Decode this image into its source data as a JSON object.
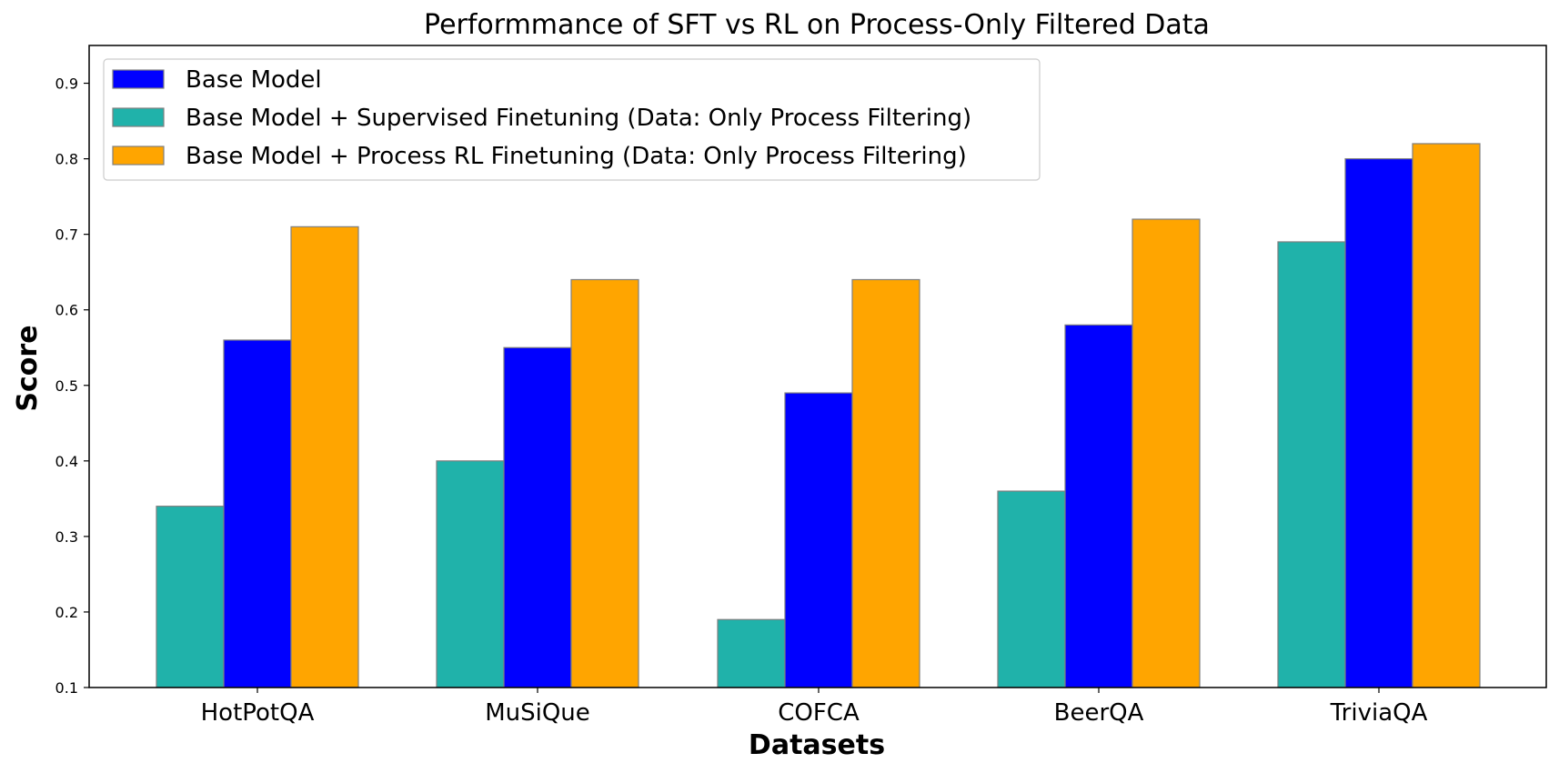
{
  "chart_data": {
    "type": "bar",
    "title": "Performmance of SFT vs RL on Process-Only Filtered Data",
    "xlabel": "Datasets",
    "ylabel": "Score",
    "categories": [
      "HotPotQA",
      "MuSiQue",
      "COFCA",
      "BeerQA",
      "TriviaQA"
    ],
    "ylim": [
      0.1,
      0.95
    ],
    "yticks": [
      0.1,
      0.2,
      0.3,
      0.4,
      0.5,
      0.6,
      0.7,
      0.8,
      0.9
    ],
    "grid": false,
    "legend_position": "top-left",
    "bar_order": [
      "Base Model + Supervised Finetuning (Data: Only Process Filtering)",
      "Base Model",
      "Base Model + Process RL Finetuning (Data: Only Process Filtering)"
    ],
    "series": [
      {
        "name": "Base Model",
        "color": "#0000ff",
        "values": [
          0.56,
          0.55,
          0.49,
          0.58,
          0.8
        ]
      },
      {
        "name": "Base Model + Supervised Finetuning (Data: Only Process Filtering)",
        "color": "#20b2aa",
        "values": [
          0.34,
          0.4,
          0.19,
          0.36,
          0.69
        ]
      },
      {
        "name": "Base Model + Process RL Finetuning (Data: Only Process Filtering)",
        "color": "#ffa500",
        "values": [
          0.71,
          0.64,
          0.64,
          0.72,
          0.82
        ]
      }
    ]
  }
}
